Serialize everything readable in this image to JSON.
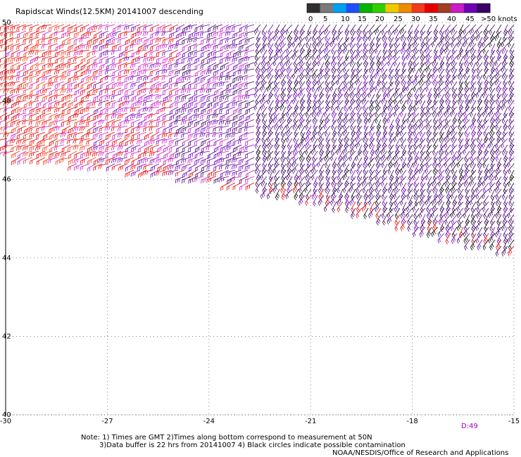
{
  "title": "Rapidscat Winds(12.5KM) 20141007 descending",
  "colorbar": {
    "colors": [
      "#303030",
      "#7a7a7a",
      "#00a0f0",
      "#1e50ff",
      "#00b400",
      "#30d000",
      "#f0c800",
      "#f08c00",
      "#f03c1e",
      "#e60000",
      "#a04020",
      "#c81ec8",
      "#6e00b4",
      "#3c0064"
    ],
    "labels": [
      "0",
      "5",
      "10",
      "15",
      "20",
      "25",
      "30",
      "35",
      "40",
      "45",
      ">50 knots"
    ]
  },
  "map": {
    "lon_range": [
      -30,
      -15
    ],
    "lat_range": [
      40,
      50
    ],
    "lon_labels": [
      {
        "value": -30,
        "text": "-30"
      },
      {
        "value": -27,
        "text": "-27"
      },
      {
        "value": -24,
        "text": "-24"
      },
      {
        "value": -21,
        "text": "-21"
      },
      {
        "value": -18,
        "text": "-18"
      },
      {
        "value": -15,
        "text": "-15"
      }
    ],
    "lat_labels": [
      {
        "value": 50,
        "text": "50"
      },
      {
        "value": 48,
        "text": "48"
      },
      {
        "value": 46,
        "text": "46"
      },
      {
        "value": 44,
        "text": "44"
      },
      {
        "value": 42,
        "text": "42"
      },
      {
        "value": 40,
        "text": "40"
      }
    ],
    "grid": "dotted",
    "swath_edge": [
      {
        "lon": -30,
        "lat": 46.6
      },
      {
        "lon": -27,
        "lat": 46.3
      },
      {
        "lon": -24,
        "lat": 46.0
      },
      {
        "lon": -21,
        "lat": 45.55
      },
      {
        "lon": -19,
        "lat": 45.1
      },
      {
        "lon": -18,
        "lat": 44.8
      },
      {
        "lon": -17,
        "lat": 44.6
      },
      {
        "lon": -15,
        "lat": 44.2
      }
    ],
    "time_label": "D:49"
  },
  "notes": [
    "Note: 1) Times are GMT 2)Times along bottom correspond to measurement at 50N",
    "3)Data buffer is 22 hrs from 20141007 4) Black circles indicate possible contamination"
  ],
  "credit": "NOAA/NESDIS/Office of Research and Applications"
}
